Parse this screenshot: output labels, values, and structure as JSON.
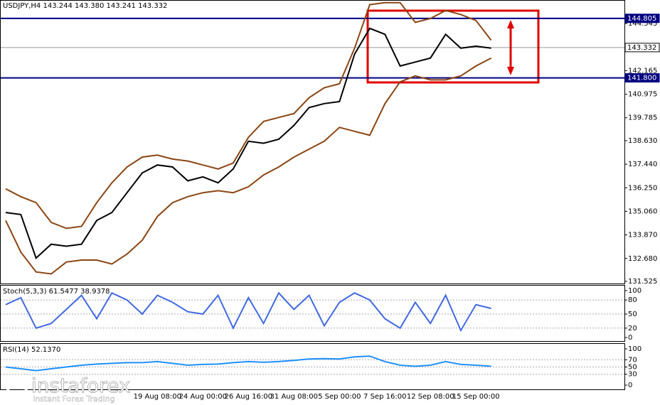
{
  "chart_data": [
    {
      "type": "line",
      "title": "USDJPY,H4  143.244 143.380 143.241 143.332",
      "categories": [
        null,
        null,
        null,
        null,
        null,
        null,
        null,
        null,
        null,
        null,
        "19 Aug 08:00",
        null,
        null,
        "24 Aug 00:00",
        null,
        null,
        "26 Aug 16:00",
        null,
        null,
        "31 Aug 08:00",
        null,
        null,
        "5 Sep 00:00",
        null,
        null,
        "7 Sep 16:00",
        null,
        null,
        "12 Sep 08:00",
        null,
        null,
        "15 Sep 00:00",
        null
      ],
      "series": [
        {
          "color": "#8b4513",
          "values": [
            136.2,
            135.8,
            135.5,
            134.5,
            134.2,
            134.3,
            135.5,
            136.5,
            137.3,
            137.8,
            137.9,
            137.7,
            137.6,
            137.4,
            137.2,
            137.5,
            138.8,
            139.6,
            139.8,
            140.0,
            140.8,
            141.3,
            141.5,
            143.3,
            145.5,
            145.6,
            145.6,
            144.6,
            144.8,
            145.2,
            145.0,
            144.7,
            143.7
          ]
        },
        {
          "color": "#8b4513",
          "values": [
            134.6,
            133.0,
            132.0,
            131.9,
            132.5,
            132.6,
            132.6,
            132.4,
            132.9,
            133.6,
            134.8,
            135.5,
            135.8,
            136.0,
            136.1,
            136.0,
            136.3,
            136.9,
            137.3,
            137.8,
            138.2,
            138.6,
            139.3,
            139.1,
            138.9,
            140.5,
            141.6,
            141.9,
            141.7,
            141.7,
            141.9,
            142.4,
            142.8
          ]
        },
        {
          "color": "#000000",
          "values": [
            135.0,
            134.9,
            132.7,
            133.4,
            133.3,
            133.4,
            134.6,
            135.0,
            136.0,
            137.0,
            137.4,
            137.3,
            136.6,
            136.8,
            136.5,
            137.2,
            138.6,
            138.5,
            138.7,
            139.4,
            140.3,
            140.5,
            140.6,
            143.0,
            144.3,
            144.0,
            142.4,
            142.6,
            142.8,
            144.0,
            143.3,
            143.4,
            143.3
          ]
        }
      ],
      "ylim": [
        131.38,
        145.66
      ],
      "yticks": [
        144.545,
        142.165,
        140.975,
        139.785,
        {
          "value": 138.63,
          "label": "138.630"
        },
        {
          "value": 137.44,
          "label": "137.440"
        },
        {
          "value": 136.25,
          "label": "136.250"
        },
        {
          "value": 135.06,
          "label": "135.060"
        },
        {
          "value": 133.87,
          "label": "133.870"
        },
        {
          "value": 132.68,
          "label": "132.680"
        },
        131.525
      ],
      "levels": [
        {
          "value": 144.805,
          "label": "144.805",
          "color": "#000080"
        },
        {
          "value": 143.332,
          "label": "143.332",
          "color": "#000000"
        },
        {
          "value": 141.8,
          "label": "141.800",
          "color": "#000080"
        }
      ],
      "grid": false
    },
    {
      "type": "line",
      "title": "Stoch(5,3,3) 61.5477 38.9378",
      "series": [
        {
          "color": "#4169e1",
          "values": [
            70,
            85,
            20,
            30,
            60,
            90,
            40,
            95,
            80,
            50,
            90,
            75,
            55,
            50,
            90,
            20,
            85,
            30,
            95,
            60,
            90,
            25,
            75,
            95,
            80,
            40,
            20,
            75,
            30,
            90,
            15,
            70,
            62
          ]
        }
      ],
      "ylim": [
        0,
        100
      ],
      "yticks": [
        100,
        80,
        50,
        20,
        0
      ],
      "grid": true
    },
    {
      "type": "line",
      "title": "RSI(14) 52.1370",
      "series": [
        {
          "color": "#1e90ff",
          "values": [
            50,
            45,
            40,
            45,
            50,
            55,
            58,
            60,
            62,
            62,
            65,
            60,
            55,
            57,
            58,
            62,
            65,
            63,
            65,
            68,
            72,
            73,
            72,
            78,
            80,
            65,
            55,
            52,
            55,
            65,
            57,
            55,
            52
          ]
        }
      ],
      "ylim": [
        0,
        100
      ],
      "yticks": [
        100,
        70,
        50,
        30,
        0
      ],
      "grid": true
    }
  ],
  "watermark": {
    "brand": "instaforex",
    "tagline": "Instant Forex Trading"
  }
}
